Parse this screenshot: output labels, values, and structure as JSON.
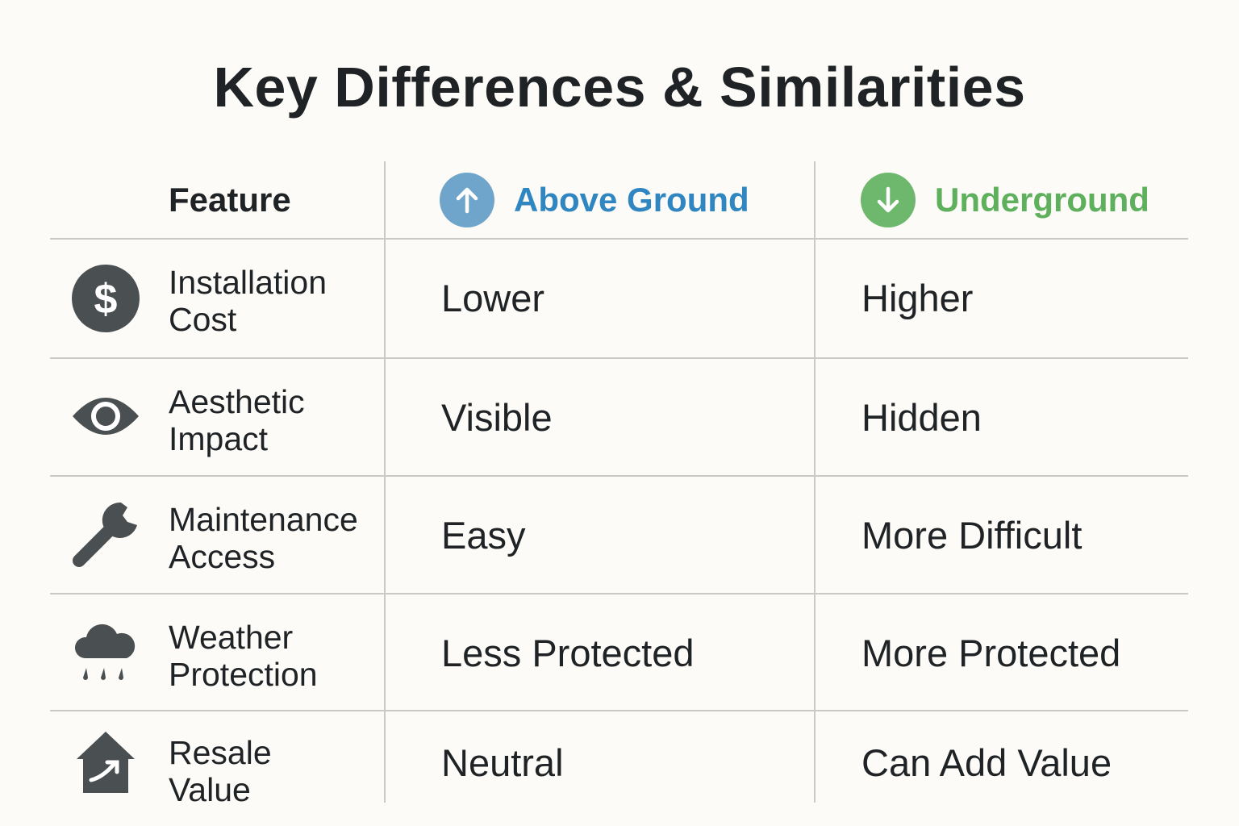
{
  "title": "Key Differences & Similarities",
  "header": {
    "feature": "Feature",
    "above": {
      "label": "Above Ground",
      "icon": "arrow-up-icon",
      "color": "#2f86c0",
      "circle_color": "#6fa5cb"
    },
    "under": {
      "label": "Underground",
      "icon": "arrow-down-icon",
      "color": "#5fb05d",
      "circle_color": "#6db86c"
    }
  },
  "rows": [
    {
      "feature_line1": "Installation",
      "feature_line2": "Cost",
      "icon": "dollar-icon",
      "above": "Lower",
      "under": "Higher"
    },
    {
      "feature_line1": "Aesthetic",
      "feature_line2": "Impact",
      "icon": "eye-icon",
      "above": "Visible",
      "under": "Hidden"
    },
    {
      "feature_line1": "Maintenance",
      "feature_line2": "Access",
      "icon": "wrench-icon",
      "above": "Easy",
      "under": "More Difficult"
    },
    {
      "feature_line1": "Weather",
      "feature_line2": "Protection",
      "icon": "rain-cloud-icon",
      "above": "Less Protected",
      "under": "More Protected"
    },
    {
      "feature_line1": "Resale",
      "feature_line2": "Value",
      "icon": "house-arrow-icon",
      "above": "Neutral",
      "under": "Can Add Value"
    }
  ]
}
